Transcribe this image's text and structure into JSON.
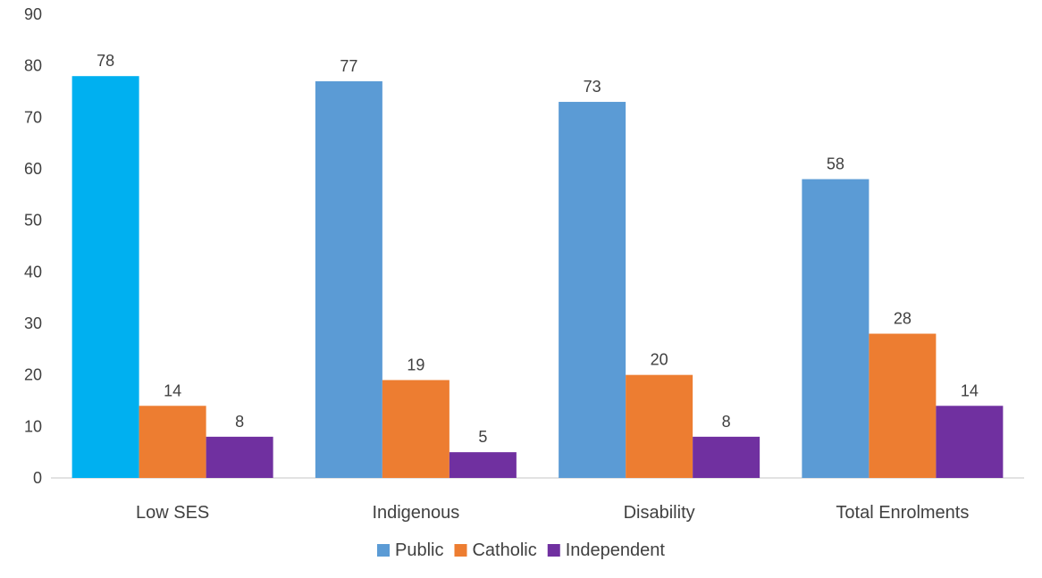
{
  "chart_data": {
    "type": "bar",
    "title": "",
    "xlabel": "",
    "ylabel": "",
    "ylim": [
      0,
      90
    ],
    "yticks": [
      0,
      10,
      20,
      30,
      40,
      50,
      60,
      70,
      80,
      90
    ],
    "grid": false,
    "legend_position": "bottom",
    "categories": [
      "Low SES",
      "Indigenous",
      "Disability",
      "Total Enrolments"
    ],
    "series": [
      {
        "name": "Public",
        "color": "#5b9bd5",
        "values": [
          78,
          77,
          73,
          58
        ],
        "labels": [
          "78",
          "77",
          "73",
          "58"
        ]
      },
      {
        "name": "Catholic",
        "color": "#ed7d31",
        "values": [
          14,
          19,
          20,
          28
        ],
        "labels": [
          "14",
          "19",
          "20",
          "28"
        ]
      },
      {
        "name": "Independent",
        "color": "#7030a0",
        "values": [
          8,
          5,
          8,
          14
        ],
        "labels": [
          "8",
          "5",
          "8",
          "14"
        ]
      }
    ],
    "highlighted_bar": {
      "series": "Public",
      "category": "Low SES",
      "color": "#00b0f0"
    }
  }
}
